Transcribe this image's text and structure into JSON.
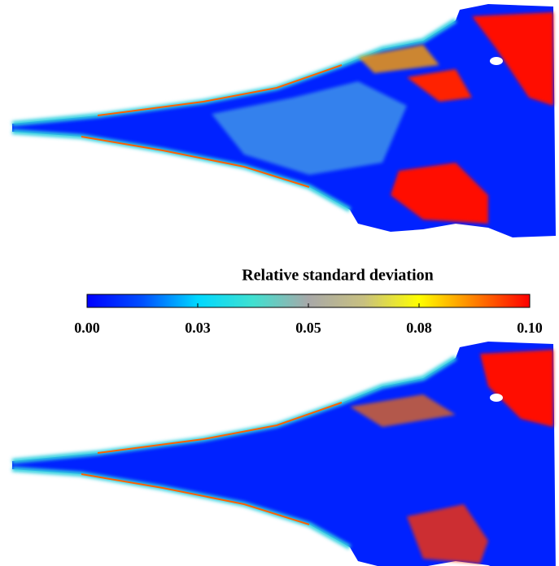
{
  "chart_data": {
    "type": "colorbar",
    "title": "Relative standard deviation",
    "clim": [
      0,
      0.1
    ],
    "ticks": [
      {
        "value": 0,
        "label": "0.00"
      },
      {
        "value": 0.025,
        "label": "0.03"
      },
      {
        "value": 0.05,
        "label": "0.05"
      },
      {
        "value": 0.075,
        "label": "0.08"
      },
      {
        "value": 0.1,
        "label": "0.10"
      }
    ],
    "colormap": [
      "#0000ff",
      "#0050ff",
      "#00d8ff",
      "#40e0d0",
      "#a8a8a8",
      "#c8c080",
      "#ffff00",
      "#ff8000",
      "#ff0000"
    ]
  }
}
